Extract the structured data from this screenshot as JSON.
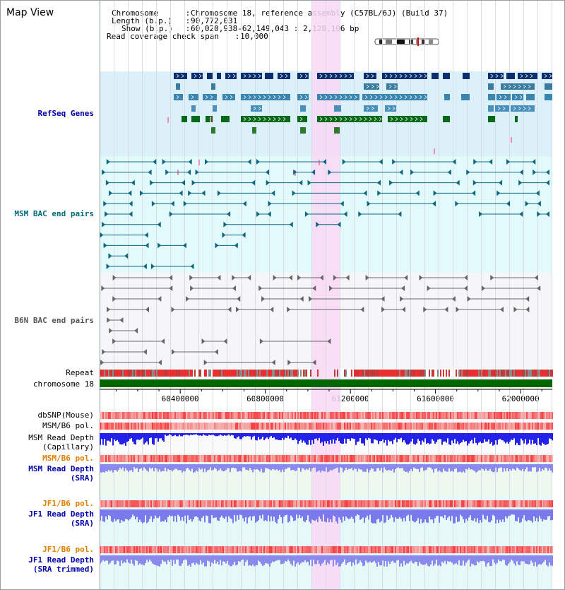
{
  "page": {
    "title": "Map View",
    "header": {
      "chromosome_label": "Chromosome",
      "chromosome_value": "Chromosome 18, reference assembly (C57BL/6J) (Build 37)",
      "length_label": "Length (b.p.)",
      "length_value": "90,772,031",
      "show_label": "Show (b.p.)",
      "show_value": "60,020,938-62,149,043 : 2,128,106 bp",
      "coverage_label": "Read coverage check span",
      "coverage_value": "10,000"
    },
    "separator": " : "
  },
  "tracks": {
    "refseq": {
      "label": "RefSeq Genes",
      "color": "#0000aa",
      "bg": "#dcf0fa"
    },
    "msm_bac": {
      "label": "MSM BAC end pairs",
      "color": "#006a7a",
      "bg": "#e2fafa"
    },
    "b6n_bac": {
      "label": "B6N BAC end pairs",
      "color": "#555555",
      "bg": "#f6f6f8"
    },
    "repeat": {
      "label": "Repeat"
    },
    "chromosome": {
      "label": "chromosome 18",
      "color": "#006600"
    },
    "dbsnp": {
      "label": "dbSNP(Mouse)"
    },
    "msm_b6_pol_cap": {
      "label": "MSM/B6 pol."
    },
    "msm_depth_cap": {
      "label": "MSM Read Depth\n(Capillary)"
    },
    "msm_b6_pol_sra": {
      "label": "MSM/B6 pol.",
      "color": "#e08000"
    },
    "msm_depth_sra": {
      "label": "MSM Read Depth\n(SRA)",
      "color": "#0000aa"
    },
    "jf1_b6_pol": {
      "label": "JF1/B6 pol.",
      "color": "#e08000"
    },
    "jf1_depth_sra": {
      "label": "JF1 Read Depth\n(SRA)",
      "color": "#0000aa"
    },
    "jf1_b6_pol_trim": {
      "label": "JF1/B6 pol.",
      "color": "#e08000"
    },
    "jf1_depth_trim": {
      "label": "JF1 Read Depth\n(SRA trimmed)",
      "color": "#0000aa"
    }
  },
  "axis": {
    "range": [
      60020938,
      62149043
    ],
    "ticks": [
      "60400000",
      "60800000",
      "61200000",
      "61600000",
      "62000000"
    ],
    "tick_values": [
      60400000,
      60800000,
      61200000,
      61600000,
      62000000
    ]
  },
  "highlight": {
    "start": 61020000,
    "end": 61150000,
    "color": "#f8d8f4"
  }
}
